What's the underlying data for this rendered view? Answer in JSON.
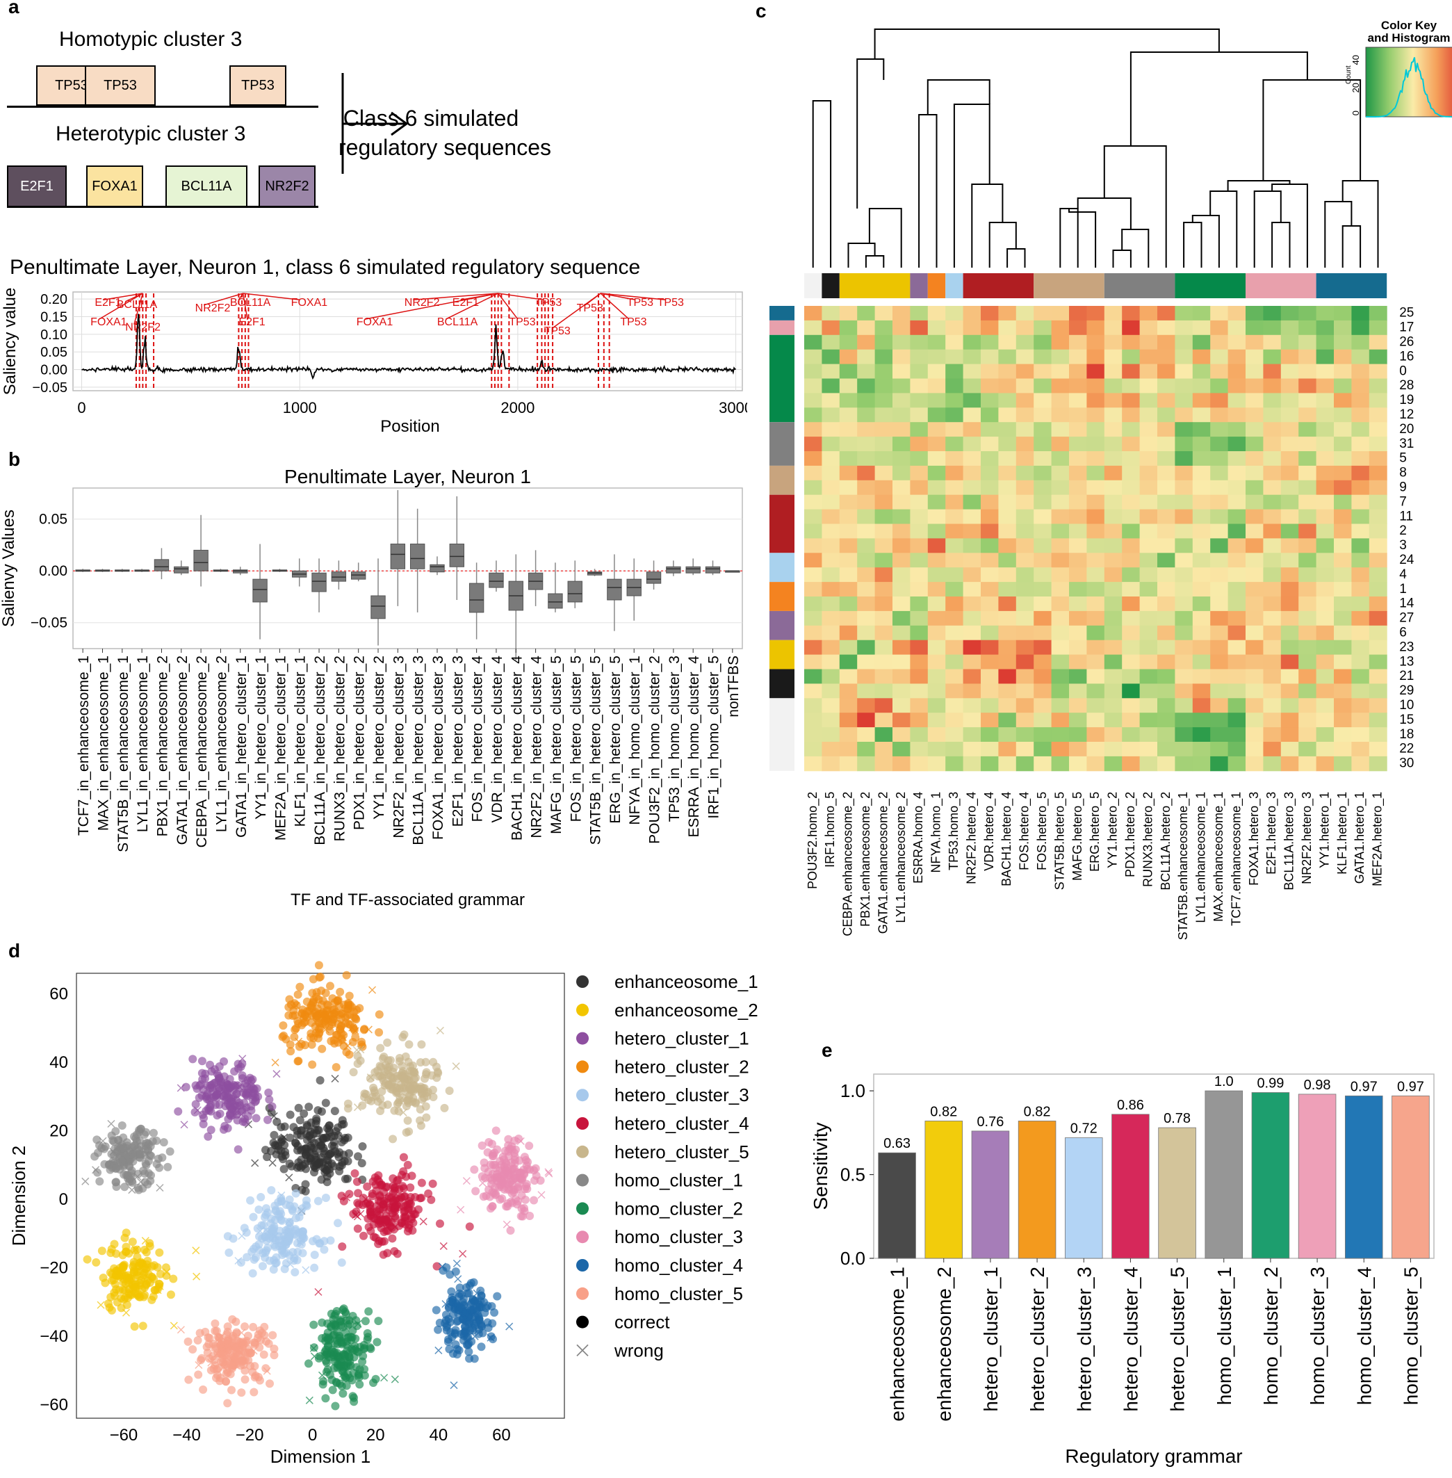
{
  "panels": {
    "a": "a",
    "b": "b",
    "c": "c",
    "d": "d",
    "e": "e"
  },
  "panel_a": {
    "homotypic_title": "Homotypic cluster 3",
    "homotypic_motifs": [
      {
        "label": "TP53",
        "color": "#f8dcc4"
      },
      {
        "label": "TP53",
        "color": "#f8dcc4"
      },
      {
        "label": "TP53",
        "color": "#f8dcc4"
      }
    ],
    "heterotypic_title": "Heterotypic cluster 3",
    "heterotypic_motifs": [
      {
        "label": "E2F1",
        "color": "#5e4f5e",
        "text_color": "#ffffff"
      },
      {
        "label": "FOXA1",
        "color": "#fbe3a0",
        "text_color": "#000000"
      },
      {
        "label": "BCL11A",
        "color": "#e6f4d4",
        "text_color": "#000000"
      },
      {
        "label": "NR2F2",
        "color": "#9b86a8",
        "text_color": "#000000"
      }
    ],
    "result_line1": "Class 6 simulated",
    "result_line2": "regulatory sequences",
    "saliency_title": "Penultimate Layer, Neuron 1, class 6 simulated regulatory sequence",
    "saliency_ylabel": "Saliency value",
    "saliency_xlabel": "Position",
    "saliency_xticks": [
      "0",
      "1000",
      "2000",
      "3000"
    ],
    "saliency_yticks": [
      "0.20",
      "0.15",
      "0.10",
      "0.05",
      "0.00",
      "−0.05"
    ],
    "annotations": [
      {
        "text": "E2F1",
        "x": 60,
        "y": 0.19
      },
      {
        "text": "BCL11A",
        "x": 160,
        "y": 0.185
      },
      {
        "text": "FOXA1",
        "x": 40,
        "y": 0.135
      },
      {
        "text": "NR2F2",
        "x": 200,
        "y": 0.12
      },
      {
        "text": "NR2F2",
        "x": 520,
        "y": 0.175
      },
      {
        "text": "BCL11A",
        "x": 680,
        "y": 0.19
      },
      {
        "text": "E2F1",
        "x": 720,
        "y": 0.135
      },
      {
        "text": "FOXA1",
        "x": 960,
        "y": 0.19
      },
      {
        "text": "FOXA1",
        "x": 1260,
        "y": 0.135
      },
      {
        "text": "NR2F2",
        "x": 1480,
        "y": 0.19
      },
      {
        "text": "E2F1",
        "x": 1700,
        "y": 0.19
      },
      {
        "text": "BCL11A",
        "x": 1630,
        "y": 0.135
      },
      {
        "text": "TP53",
        "x": 1960,
        "y": 0.135
      },
      {
        "text": "TP53",
        "x": 2080,
        "y": 0.19
      },
      {
        "text": "TP53",
        "x": 2120,
        "y": 0.11
      },
      {
        "text": "TP53",
        "x": 2270,
        "y": 0.175
      },
      {
        "text": "TP53",
        "x": 2500,
        "y": 0.19
      },
      {
        "text": "TP53",
        "x": 2640,
        "y": 0.19
      },
      {
        "text": "TP53",
        "x": 2470,
        "y": 0.135
      }
    ]
  },
  "panel_b": {
    "title": "Penultimate Layer, Neuron 1",
    "ylabel": "Salienvy Values",
    "xlabel": "TF and TF-associated grammar",
    "yticks": [
      "0.05",
      "0.00",
      "−0.05"
    ]
  },
  "panel_c": {
    "color_key_title1": "Color Key",
    "color_key_title2": "and Histogram",
    "color_key_ylabel": "Count",
    "color_key_ticks": [
      "40",
      "20",
      "0"
    ],
    "row_labels": [
      "25",
      "17",
      "26",
      "16",
      "0",
      "28",
      "19",
      "12",
      "20",
      "31",
      "5",
      "8",
      "9",
      "7",
      "11",
      "2",
      "3",
      "24",
      "4",
      "1",
      "14",
      "27",
      "6",
      "23",
      "13",
      "21",
      "29",
      "10",
      "15",
      "18",
      "22",
      "30"
    ],
    "col_labels": [
      "POU3F2.homo_2",
      "IRF1.homo_5",
      "CEBPA.enhanceosome_2",
      "PBX1.enhanceosome_2",
      "GATA1.enhanceosome_2",
      "LYL1.enhanceosome_2",
      "ESRRA.homo_4",
      "NFYA.homo_1",
      "TP53.homo_3",
      "NR2F2.hetero_4",
      "VDR.hetero_4",
      "BACH1.hetero_4",
      "FOS.hetero_4",
      "FOS.hetero_5",
      "STAT5B.hetero_5",
      "MAFG.hetero_5",
      "ERG.hetero_5",
      "YY1.hetero_2",
      "PDX1.hetero_2",
      "RUNX3.hetero_2",
      "BCL11A.hetero_2",
      "STAT5B.enhanceosome_1",
      "LYL1.enhanceosome_1",
      "MAX.enhanceosome_1",
      "TCF7.enhanceosome_1",
      "FOXA1.hetero_3",
      "E2F1.hetero_3",
      "BCL11A.hetero_3",
      "NR2F2.hetero_3",
      "YY1.hetero_1",
      "KLF1.hetero_1",
      "GATA1.hetero_1",
      "MEF2A.hetero_1"
    ]
  },
  "panel_d": {
    "xlabel": "Dimension 1",
    "ylabel": "Dimension 2",
    "xticks": [
      "−60",
      "−40",
      "−20",
      "0",
      "20",
      "40",
      "60"
    ],
    "yticks": [
      "60",
      "40",
      "20",
      "0",
      "−20",
      "−40",
      "−60"
    ],
    "legend": [
      {
        "label": "enhanceosome_1",
        "color": "#333333"
      },
      {
        "label": "enhanceosome_2",
        "color": "#f2c500"
      },
      {
        "label": "hetero_cluster_1",
        "color": "#8e4fa0"
      },
      {
        "label": "hetero_cluster_2",
        "color": "#f08a10"
      },
      {
        "label": "hetero_cluster_3",
        "color": "#a7c9ec"
      },
      {
        "label": "hetero_cluster_4",
        "color": "#c8143c"
      },
      {
        "label": "hetero_cluster_5",
        "color": "#c8b68c"
      },
      {
        "label": "homo_cluster_1",
        "color": "#888888"
      },
      {
        "label": "homo_cluster_2",
        "color": "#1a8a52"
      },
      {
        "label": "homo_cluster_3",
        "color": "#e88ab0"
      },
      {
        "label": "homo_cluster_4",
        "color": "#1c67a8"
      },
      {
        "label": "homo_cluster_5",
        "color": "#f8a088"
      },
      {
        "label": "correct",
        "color": "#000000"
      },
      {
        "label": "wrong",
        "color": "#888888"
      }
    ]
  },
  "chart_data": [
    {
      "type": "line",
      "title": "Penultimate Layer, Neuron 1, class 6 simulated regulatory sequence",
      "xlabel": "Position",
      "ylabel": "Saliency value",
      "xlim": [
        0,
        3000
      ],
      "ylim": [
        -0.06,
        0.22
      ],
      "peaks": [
        {
          "x": 260,
          "y": 0.17
        },
        {
          "x": 290,
          "y": 0.1
        },
        {
          "x": 720,
          "y": 0.08
        },
        {
          "x": 1900,
          "y": 0.15
        },
        {
          "x": 1930,
          "y": 0.08
        },
        {
          "x": 2110,
          "y": 0.03
        },
        {
          "x": 1060,
          "y": -0.03
        }
      ]
    },
    {
      "type": "box",
      "title": "Penultimate Layer, Neuron 1",
      "xlabel": "TF and TF-associated grammar",
      "ylabel": "Salienvy Values",
      "ylim": [
        -0.075,
        0.08
      ],
      "categories": [
        "TCF7_in_enhanceosome_1",
        "MAX_in_enhanceosome_1",
        "STAT5B_in_enhanceosome_1",
        "LYL1_in_enhanceosome_1",
        "PBX1_in_enhanceosome_2",
        "GATA1_in_enhanceosome_2",
        "CEBPA_in_enhanceosome_2",
        "LYL1_in_enhanceosome_2",
        "GATA1_in_hetero_cluster_1",
        "YY1_in_hetero_cluster_1",
        "MEF2A_in_hetero_cluster_1",
        "KLF1_in_hetero_cluster_1",
        "BCL11A_in_hetero_cluster_2",
        "RUNX3_in_hetero_cluster_2",
        "PDX1_in_hetero_cluster_2",
        "YY1_in_hetero_cluster_2",
        "NR2F2_in_hetero_cluster_3",
        "BCL11A_in_hetero_cluster_3",
        "FOXA1_in_hetero_cluster_3",
        "E2F1_in_hetero_cluster_3",
        "FOS_in_hetero_cluster_4",
        "VDR_in_hetero_cluster_4",
        "BACH1_in_hetero_cluster_4",
        "NR2F2_in_hetero_cluster_4",
        "MAFG_in_hetero_cluster_5",
        "FOS_in_hetero_cluster_5",
        "STAT5B_in_hetero_cluster_5",
        "ERG_in_hetero_cluster_5",
        "NFYA_in_homo_cluster_1",
        "POU3F2_in_homo_cluster_2",
        "TP53_in_homo_cluster_3",
        "ESRRA_in_homo_cluster_4",
        "IRF1_in_homo_cluster_5",
        "nonTFBS"
      ],
      "boxes": [
        [
          -0.001,
          0,
          0,
          0.001,
          0.002
        ],
        [
          -0.001,
          0,
          0,
          0.001,
          0.002
        ],
        [
          -0.001,
          0,
          0,
          0.001,
          0.002
        ],
        [
          -0.001,
          0,
          0,
          0.001,
          0.002
        ],
        [
          -0.008,
          0.0,
          0.004,
          0.011,
          0.022
        ],
        [
          -0.004,
          -0.002,
          0.002,
          0.004,
          0.01
        ],
        [
          -0.015,
          0.0,
          0.008,
          0.02,
          0.054
        ],
        [
          -0.001,
          0,
          0,
          0.001,
          0.002
        ],
        [
          -0.004,
          -0.002,
          0.0,
          0.001,
          0.004
        ],
        [
          -0.066,
          -0.03,
          -0.018,
          -0.008,
          0.026
        ],
        [
          -0.001,
          0,
          0,
          0.001,
          0.002
        ],
        [
          -0.015,
          -0.006,
          -0.003,
          0,
          0.012
        ],
        [
          -0.04,
          -0.02,
          -0.01,
          -0.002,
          0.012
        ],
        [
          -0.018,
          -0.01,
          -0.006,
          -0.001,
          0.01
        ],
        [
          -0.01,
          -0.008,
          -0.004,
          -0.001,
          0.008
        ],
        [
          -0.072,
          -0.046,
          -0.034,
          -0.024,
          0.012
        ],
        [
          -0.034,
          0.002,
          0.016,
          0.026,
          0.078
        ],
        [
          -0.04,
          0.002,
          0.012,
          0.026,
          0.06
        ],
        [
          -0.004,
          -0.001,
          0.004,
          0.006,
          0.014
        ],
        [
          -0.028,
          0.004,
          0.014,
          0.026,
          0.072
        ],
        [
          -0.066,
          -0.04,
          -0.028,
          -0.012,
          0.008
        ],
        [
          -0.02,
          -0.016,
          -0.01,
          -0.002,
          0.01
        ],
        [
          -0.086,
          -0.038,
          -0.024,
          -0.01,
          0.016
        ],
        [
          -0.034,
          -0.018,
          -0.01,
          -0.002,
          0.02
        ],
        [
          -0.04,
          -0.036,
          -0.03,
          -0.022,
          0.008
        ],
        [
          -0.036,
          -0.03,
          -0.022,
          -0.01,
          0.01
        ],
        [
          -0.005,
          -0.004,
          -0.002,
          -0.001,
          0.002
        ],
        [
          -0.058,
          -0.028,
          -0.016,
          -0.008,
          0.016
        ],
        [
          -0.048,
          -0.024,
          -0.016,
          -0.008,
          0.012
        ],
        [
          -0.018,
          -0.012,
          -0.008,
          -0.001,
          0.01
        ],
        [
          -0.005,
          -0.002,
          0.002,
          0.004,
          0.01
        ],
        [
          -0.004,
          -0.002,
          0.002,
          0.004,
          0.012
        ],
        [
          -0.004,
          -0.002,
          0.002,
          0.004,
          0.01
        ],
        [
          0,
          0,
          0,
          0,
          0
        ]
      ]
    },
    {
      "type": "heatmap",
      "title": "",
      "rows": [
        "25",
        "17",
        "26",
        "16",
        "0",
        "28",
        "19",
        "12",
        "20",
        "31",
        "5",
        "8",
        "9",
        "7",
        "11",
        "2",
        "3",
        "24",
        "4",
        "1",
        "14",
        "27",
        "6",
        "23",
        "13",
        "21",
        "29",
        "10",
        "15",
        "18",
        "22",
        "30"
      ],
      "columns": [
        "POU3F2.homo_2",
        "IRF1.homo_5",
        "CEBPA.enhanceosome_2",
        "PBX1.enhanceosome_2",
        "GATA1.enhanceosome_2",
        "LYL1.enhanceosome_2",
        "ESRRA.homo_4",
        "NFYA.homo_1",
        "TP53.homo_3",
        "NR2F2.hetero_4",
        "VDR.hetero_4",
        "BACH1.hetero_4",
        "FOS.hetero_4",
        "FOS.hetero_5",
        "STAT5B.hetero_5",
        "MAFG.hetero_5",
        "ERG.hetero_5",
        "YY1.hetero_2",
        "PDX1.hetero_2",
        "RUNX3.hetero_2",
        "BCL11A.hetero_2",
        "STAT5B.enhanceosome_1",
        "LYL1.enhanceosome_1",
        "MAX.enhanceosome_1",
        "TCF7.enhanceosome_1",
        "FOXA1.hetero_3",
        "E2F1.hetero_3",
        "BCL11A.hetero_3",
        "NR2F2.hetero_3",
        "YY1.hetero_1",
        "KLF1.hetero_1",
        "GATA1.hetero_1",
        "MEF2A.hetero_1"
      ],
      "column_groups": [
        {
          "color": "#f2f2f2",
          "count": 1
        },
        {
          "color": "#1a1a1a",
          "count": 1
        },
        {
          "color": "#ecc400",
          "count": 4
        },
        {
          "color": "#8b6a98",
          "count": 1
        },
        {
          "color": "#f48320",
          "count": 1
        },
        {
          "color": "#a9d2ee",
          "count": 1
        },
        {
          "color": "#b01e22",
          "count": 4
        },
        {
          "color": "#c8a47e",
          "count": 4
        },
        {
          "color": "#808080",
          "count": 4
        },
        {
          "color": "#05894a",
          "count": 4
        },
        {
          "color": "#e8a0ac",
          "count": 4
        },
        {
          "color": "#156b8f",
          "count": 4
        }
      ],
      "row_groups": [
        {
          "color": "#156b8f",
          "count": 1
        },
        {
          "color": "#e8a0ac",
          "count": 1
        },
        {
          "color": "#05894a",
          "count": 6
        },
        {
          "color": "#808080",
          "count": 3
        },
        {
          "color": "#c8a47e",
          "count": 2
        },
        {
          "color": "#b01e22",
          "count": 4
        },
        {
          "color": "#a9d2ee",
          "count": 2
        },
        {
          "color": "#f48320",
          "count": 2
        },
        {
          "color": "#8b6a98",
          "count": 2
        },
        {
          "color": "#ecc400",
          "count": 2
        },
        {
          "color": "#1a1a1a",
          "count": 2
        },
        {
          "color": "#f2f2f2",
          "count": 5
        }
      ]
    },
    {
      "type": "scatter",
      "xlabel": "Dimension 1",
      "ylabel": "Dimension 2",
      "xlim": [
        -75,
        80
      ],
      "ylim": [
        -64,
        66
      ],
      "clusters": [
        {
          "name": "enhanceosome_1",
          "cx": 0,
          "cy": 15,
          "rx": 12,
          "ry": 10,
          "n": 180
        },
        {
          "name": "enhanceosome_2",
          "cx": -57,
          "cy": -22,
          "rx": 9,
          "ry": 9,
          "n": 150
        },
        {
          "name": "hetero_cluster_1",
          "cx": -27,
          "cy": 30,
          "rx": 10,
          "ry": 9,
          "n": 170
        },
        {
          "name": "hetero_cluster_2",
          "cx": 5,
          "cy": 52,
          "rx": 13,
          "ry": 9,
          "n": 180
        },
        {
          "name": "hetero_cluster_3",
          "cx": -10,
          "cy": -10,
          "rx": 11,
          "ry": 9,
          "n": 160
        },
        {
          "name": "hetero_cluster_4",
          "cx": 24,
          "cy": -3,
          "rx": 11,
          "ry": 10,
          "n": 180
        },
        {
          "name": "hetero_cluster_5",
          "cx": 28,
          "cy": 33,
          "rx": 11,
          "ry": 10,
          "n": 170
        },
        {
          "name": "homo_cluster_1",
          "cx": -58,
          "cy": 12,
          "rx": 9,
          "ry": 7,
          "n": 150
        },
        {
          "name": "homo_cluster_2",
          "cx": 10,
          "cy": -44,
          "rx": 8,
          "ry": 11,
          "n": 170
        },
        {
          "name": "homo_cluster_3",
          "cx": 62,
          "cy": 7,
          "rx": 8,
          "ry": 10,
          "n": 160
        },
        {
          "name": "homo_cluster_4",
          "cx": 48,
          "cy": -35,
          "rx": 8,
          "ry": 9,
          "n": 160
        },
        {
          "name": "homo_cluster_5",
          "cx": -25,
          "cy": -45,
          "rx": 11,
          "ry": 8,
          "n": 170
        }
      ]
    },
    {
      "type": "bar",
      "xlabel": "Regulatory grammar",
      "ylabel": "Sensitivity",
      "ylim": [
        0,
        1.1
      ],
      "categories": [
        "enhanceosome_1",
        "enhanceosome_2",
        "hetero_cluster_1",
        "hetero_cluster_2",
        "hetero_cluster_3",
        "hetero_cluster_4",
        "hetero_cluster_5",
        "homo_cluster_1",
        "homo_cluster_2",
        "homo_cluster_3",
        "homo_cluster_4",
        "homo_cluster_5"
      ],
      "values": [
        0.63,
        0.82,
        0.76,
        0.82,
        0.72,
        0.86,
        0.78,
        1.0,
        0.99,
        0.98,
        0.97,
        0.97
      ],
      "value_labels": [
        "0.63",
        "0.82",
        "0.76",
        "0.82",
        "0.72",
        "0.86",
        "0.78",
        "1.0",
        "0.99",
        "0.98",
        "0.97",
        "0.97"
      ],
      "colors": [
        "#4a4a4a",
        "#f2cc0c",
        "#a67db8",
        "#f39a1e",
        "#b3d4f5",
        "#d6285a",
        "#d3c49a",
        "#969696",
        "#1d9e6e",
        "#eea0b8",
        "#2277b5",
        "#f6a58c"
      ],
      "yticks": [
        "0.0",
        "0.5",
        "1.0"
      ]
    }
  ]
}
